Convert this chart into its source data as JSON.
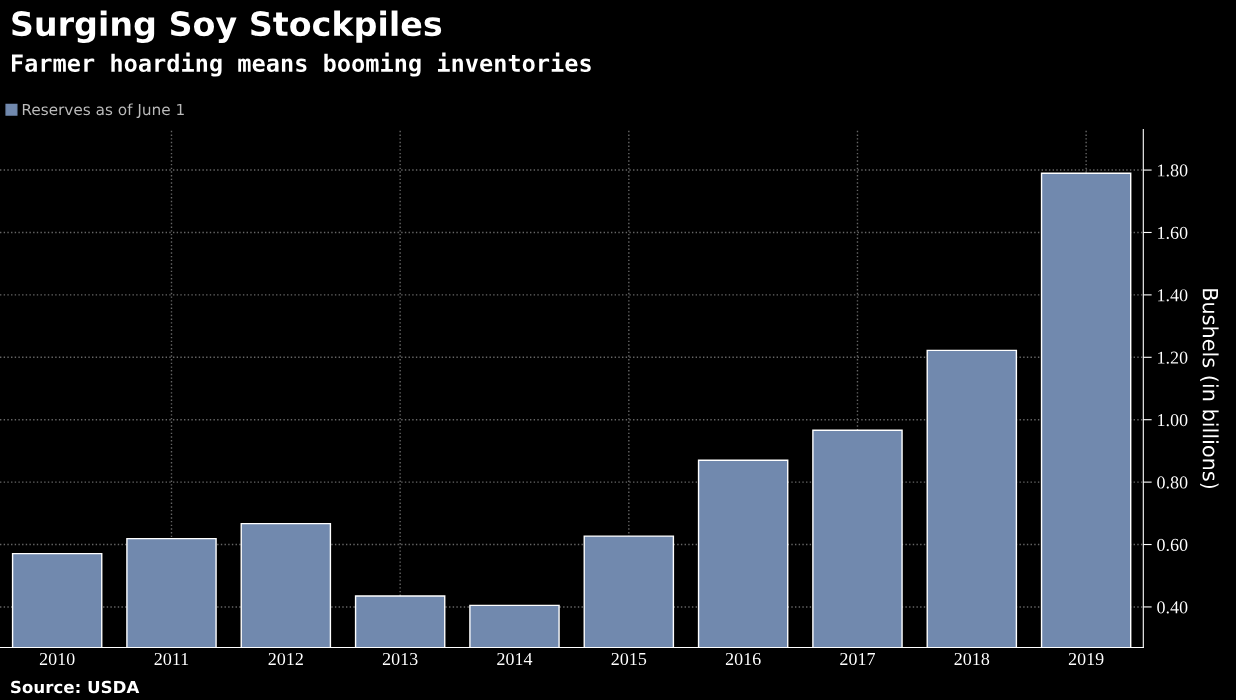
{
  "chart_data": {
    "type": "bar",
    "title": "Surging Soy Stockpiles",
    "subtitle": "Farmer hoarding means booming inventories",
    "ylabel": "Bushels (in billions)",
    "categories": [
      "2010",
      "2011",
      "2012",
      "2013",
      "2014",
      "2015",
      "2016",
      "2017",
      "2018",
      "2019"
    ],
    "series": [
      {
        "name": "Reserves as of June 1",
        "color": "#7189ae",
        "values": [
          0.571,
          0.619,
          0.667,
          0.435,
          0.405,
          0.627,
          0.87,
          0.966,
          1.222,
          1.79
        ]
      }
    ],
    "ylim": [
      0.27,
      1.93
    ],
    "yticks": [
      {
        "value": 0.4,
        "label": "0.40"
      },
      {
        "value": 0.6,
        "label": "0.60"
      },
      {
        "value": 0.8,
        "label": "0.80"
      },
      {
        "value": 1.0,
        "label": "1.00"
      },
      {
        "value": 1.2,
        "label": "1.20"
      },
      {
        "value": 1.4,
        "label": "1.40"
      },
      {
        "value": 1.6,
        "label": "1.60"
      },
      {
        "value": 1.8,
        "label": "1.80"
      }
    ],
    "grid": true,
    "legend": "top left",
    "annotations": [
      "Source: USDA"
    ]
  }
}
